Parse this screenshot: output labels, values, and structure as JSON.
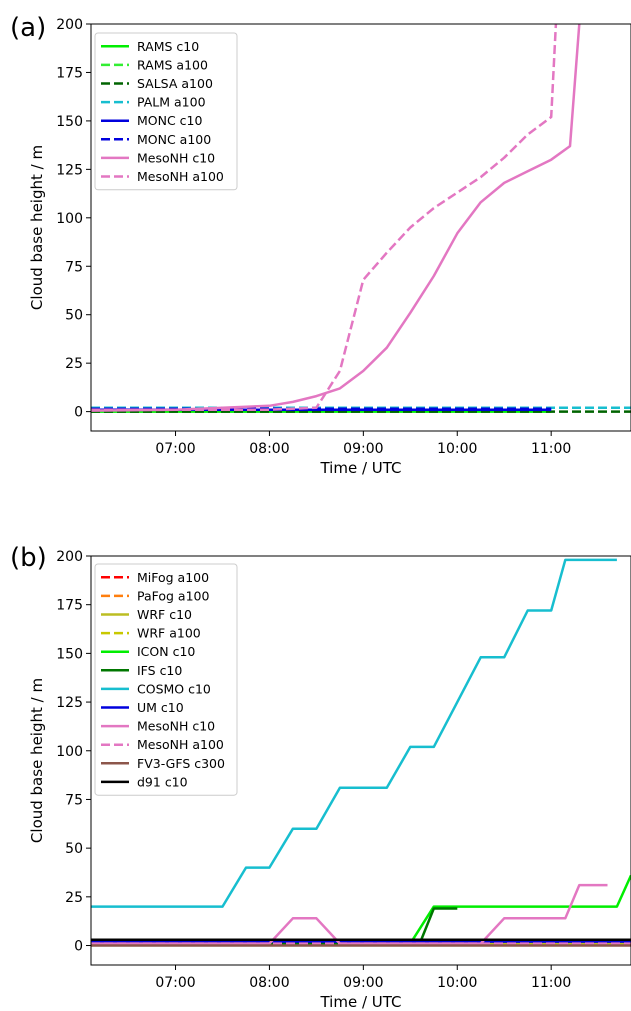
{
  "chart_data": [
    {
      "type": "line",
      "panel_label": "(a)",
      "xlabel": "Time / UTC",
      "ylabel": "Cloud base height / m",
      "xlim": [
        6.1,
        11.85
      ],
      "ylim": [
        -10,
        200
      ],
      "xticks": [
        7,
        8,
        9,
        10,
        11
      ],
      "xtick_labels": [
        "07:00",
        "08:00",
        "09:00",
        "10:00",
        "11:00"
      ],
      "yticks": [
        0,
        25,
        50,
        75,
        100,
        125,
        150,
        175,
        200
      ],
      "ytick_labels": [
        "0",
        "25",
        "50",
        "75",
        "100",
        "125",
        "150",
        "175",
        "200"
      ],
      "grid": false,
      "legend_position": "top-left",
      "series": [
        {
          "name": "RAMS c10",
          "color": "#00ee00",
          "dash": "solid",
          "x": [
            6.1,
            11.0
          ],
          "y": [
            0,
            0
          ]
        },
        {
          "name": "RAMS a100",
          "color": "#33ee33",
          "dash": "dashed",
          "x": [
            6.1,
            11.0
          ],
          "y": [
            0,
            0
          ]
        },
        {
          "name": "SALSA a100",
          "color": "#006400",
          "dash": "dashed",
          "x": [
            6.1,
            11.85
          ],
          "y": [
            0,
            0
          ]
        },
        {
          "name": "PALM a100",
          "color": "#17becf",
          "dash": "dashed",
          "x": [
            6.1,
            11.85
          ],
          "y": [
            2,
            2
          ]
        },
        {
          "name": "MONC c10",
          "color": "#0000dd",
          "dash": "solid",
          "x": [
            6.1,
            11.0
          ],
          "y": [
            1,
            1
          ]
        },
        {
          "name": "MONC a100",
          "color": "#0000dd",
          "dash": "dashed",
          "x": [
            6.1,
            11.0
          ],
          "y": [
            1.5,
            1.5
          ]
        },
        {
          "name": "MesoNH c10",
          "color": "#e377c2",
          "dash": "solid",
          "x": [
            6.1,
            7.0,
            7.5,
            8.0,
            8.25,
            8.5,
            8.75,
            9.0,
            9.25,
            9.5,
            9.75,
            10.0,
            10.25,
            10.5,
            10.75,
            11.0,
            11.2,
            11.3,
            11.35
          ],
          "y": [
            0.5,
            1,
            2,
            3,
            5,
            8,
            12,
            21,
            33,
            51,
            70,
            92,
            108,
            118,
            124,
            130,
            137,
            200,
            210
          ]
        },
        {
          "name": "MesoNH a100",
          "color": "#e377c2",
          "dash": "dashed",
          "x": [
            6.1,
            8.0,
            8.5,
            8.75,
            9.0,
            9.25,
            9.5,
            9.75,
            10.0,
            10.25,
            10.5,
            10.75,
            11.0,
            11.05,
            11.1
          ],
          "y": [
            1,
            1,
            2,
            21,
            68,
            82,
            95,
            105,
            113,
            121,
            131,
            143,
            152,
            200,
            210
          ]
        }
      ]
    },
    {
      "type": "line",
      "panel_label": "(b)",
      "xlabel": "Time / UTC",
      "ylabel": "Cloud base height / m",
      "xlim": [
        6.1,
        11.85
      ],
      "ylim": [
        -10,
        200
      ],
      "xticks": [
        7,
        8,
        9,
        10,
        11
      ],
      "xtick_labels": [
        "07:00",
        "08:00",
        "09:00",
        "10:00",
        "11:00"
      ],
      "yticks": [
        0,
        25,
        50,
        75,
        100,
        125,
        150,
        175,
        200
      ],
      "ytick_labels": [
        "0",
        "25",
        "50",
        "75",
        "100",
        "125",
        "150",
        "175",
        "200"
      ],
      "grid": false,
      "legend_position": "top-left",
      "series": [
        {
          "name": "MiFog a100",
          "color": "#ff0000",
          "dash": "dashed",
          "x": [
            6.1,
            11.85
          ],
          "y": [
            0.5,
            0.5
          ]
        },
        {
          "name": "PaFog a100",
          "color": "#ff7f0e",
          "dash": "dashed",
          "x": [
            6.1,
            11.85
          ],
          "y": [
            1,
            1
          ]
        },
        {
          "name": "WRF c10",
          "color": "#bcbd22",
          "dash": "solid",
          "x": [
            6.1,
            11.85
          ],
          "y": [
            1,
            1
          ]
        },
        {
          "name": "WRF a100",
          "color": "#c8c800",
          "dash": "dashed",
          "x": [
            6.1,
            11.85
          ],
          "y": [
            1.5,
            1.5
          ]
        },
        {
          "name": "ICON c10",
          "color": "#00ee00",
          "dash": "solid",
          "x": [
            6.1,
            9.5,
            9.75,
            10.0,
            11.0,
            11.7,
            11.85
          ],
          "y": [
            1,
            1,
            20,
            20,
            20,
            20,
            36
          ]
        },
        {
          "name": "IFS c10",
          "color": "#007700",
          "dash": "solid",
          "x": [
            6.1,
            9.6,
            9.75,
            10.0
          ],
          "y": [
            1,
            1,
            19,
            19
          ]
        },
        {
          "name": "COSMO c10",
          "color": "#17becf",
          "dash": "solid",
          "x": [
            6.1,
            7.5,
            7.75,
            8.0,
            8.25,
            8.5,
            8.75,
            9.25,
            9.5,
            9.75,
            10.0,
            10.25,
            10.5,
            10.75,
            11.0,
            11.15,
            11.7
          ],
          "y": [
            20,
            20,
            40,
            40,
            60,
            60,
            81,
            81,
            102,
            102,
            125,
            148,
            148,
            172,
            172,
            198,
            198
          ]
        },
        {
          "name": "UM c10",
          "color": "#0000dd",
          "dash": "solid",
          "x": [
            6.1,
            11.85
          ],
          "y": [
            2,
            2
          ]
        },
        {
          "name": "MesoNH c10",
          "color": "#e377c2",
          "dash": "solid",
          "x": [
            6.1,
            8.0,
            8.25,
            8.5,
            8.75,
            10.25,
            10.5,
            11.0,
            11.15,
            11.3,
            11.6
          ],
          "y": [
            1,
            1,
            14,
            14,
            1,
            1,
            14,
            14,
            14,
            31,
            31
          ]
        },
        {
          "name": "MesoNH a100",
          "color": "#e377c2",
          "dash": "dashed",
          "x": [
            6.1,
            11.85
          ],
          "y": [
            1,
            1
          ]
        },
        {
          "name": "FV3-GFS c300",
          "color": "#8c564b",
          "dash": "solid",
          "x": [
            6.1,
            11.85
          ],
          "y": [
            0,
            0
          ]
        },
        {
          "name": "d91 c10",
          "color": "#000000",
          "dash": "solid",
          "x": [
            6.1,
            11.85
          ],
          "y": [
            3,
            3
          ]
        }
      ]
    }
  ]
}
